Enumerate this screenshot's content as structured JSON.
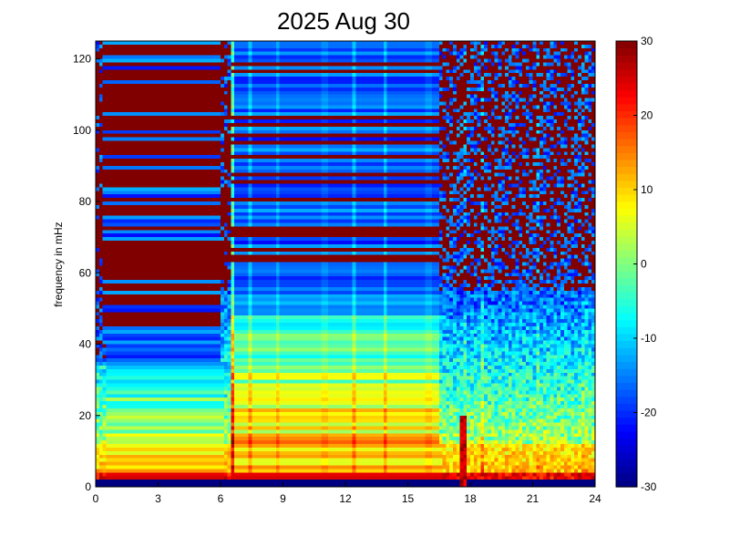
{
  "chart_data": {
    "type": "heatmap",
    "title": "2025 Aug 30",
    "xlabel": "",
    "ylabel": "frequency in mHz",
    "xlim": [
      0,
      24
    ],
    "ylim": [
      0,
      125
    ],
    "x_ticks": [
      "0",
      "3",
      "6",
      "9",
      "12",
      "15",
      "18",
      "21",
      "24"
    ],
    "y_ticks": [
      "0",
      "20",
      "40",
      "60",
      "80",
      "100",
      "120"
    ],
    "colorbar": {
      "range": [
        -30,
        30
      ],
      "colormap": "jet",
      "ticks": [
        "30",
        "20",
        "10",
        "0",
        "-10",
        "-20",
        "-30"
      ]
    },
    "grid": false,
    "legend": "none",
    "vertical_streaks_hours": [
      6.6,
      7.4,
      8.7,
      11.0,
      12.4,
      13.9,
      16.0,
      17.7,
      18.6,
      21.3,
      23.5
    ]
  }
}
